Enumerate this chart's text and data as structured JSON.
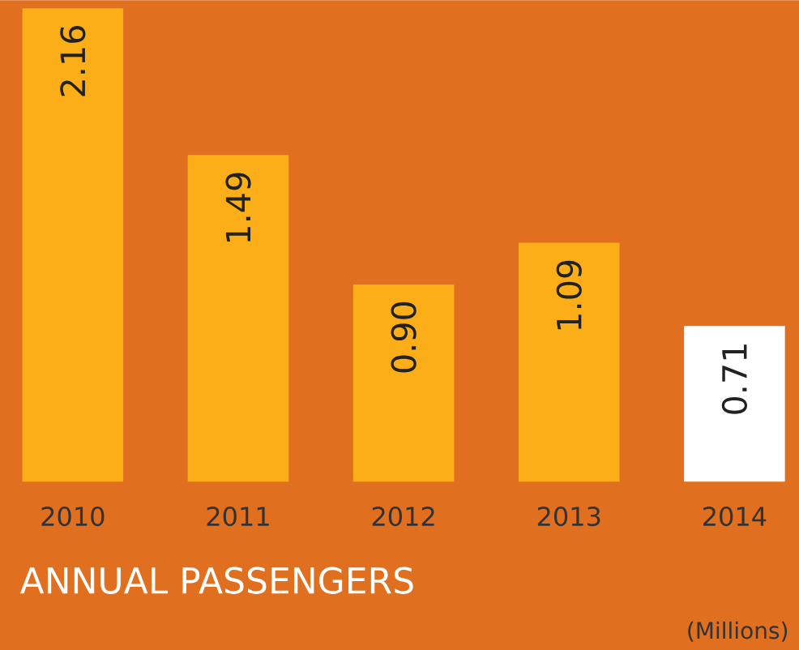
{
  "chart_data": {
    "type": "bar",
    "title": "ANNUAL PASSENGERS",
    "categories": [
      "2010",
      "2011",
      "2012",
      "2013",
      "2014"
    ],
    "values": [
      2.16,
      1.49,
      0.9,
      1.09,
      0.71
    ],
    "colors": [
      "#fbae17",
      "#fbae17",
      "#fbae17",
      "#fbae17",
      "#ffffff"
    ],
    "value_labels": [
      "2.16",
      "1.49",
      "0.90",
      "1.09",
      "0.71"
    ],
    "annotations": [
      "(Millions)"
    ]
  }
}
